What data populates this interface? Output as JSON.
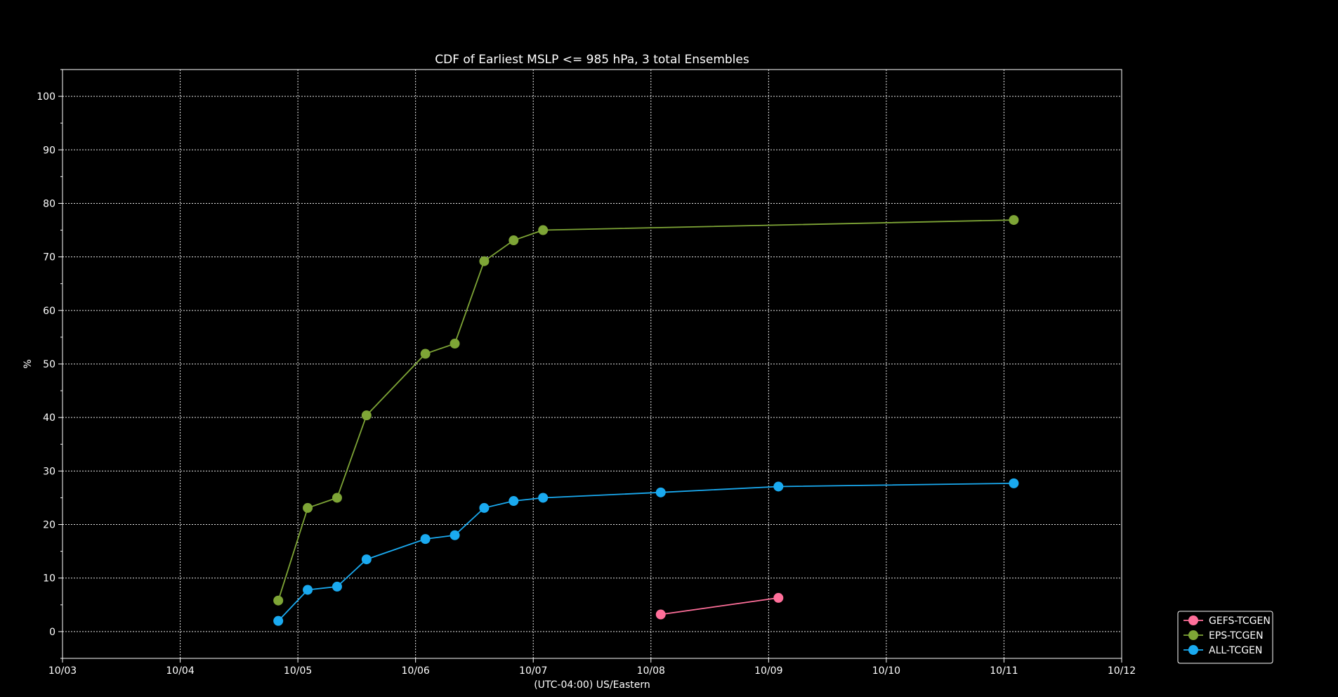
{
  "chart_data": {
    "type": "line",
    "title": "CDF of Earliest MSLP <= 985 hPa, 3 total Ensembles",
    "xlabel": "(UTC-04:00) US/Eastern",
    "ylabel": "%",
    "xlim": [
      "10/03",
      "10/12"
    ],
    "ylim": [
      -5,
      105
    ],
    "x_tick_labels": [
      "10/03",
      "10/04",
      "10/05",
      "10/06",
      "10/07",
      "10/08",
      "10/09",
      "10/10",
      "10/11",
      "10/12"
    ],
    "y_ticks": [
      0,
      10,
      20,
      30,
      40,
      50,
      60,
      70,
      80,
      90,
      100
    ],
    "grid": true,
    "legend_position": "lower-right, outside plot",
    "series": [
      {
        "name": "GEFS-TCGEN",
        "color": "#ff6f9a",
        "points": [
          {
            "x": "10/08 02:00",
            "y": 3.2
          },
          {
            "x": "10/09 02:00",
            "y": 6.3
          }
        ]
      },
      {
        "name": "EPS-TCGEN",
        "color": "#7ea536",
        "points": [
          {
            "x": "10/04 20:00",
            "y": 5.8
          },
          {
            "x": "10/05 02:00",
            "y": 23.1
          },
          {
            "x": "10/05 08:00",
            "y": 25.0
          },
          {
            "x": "10/05 14:00",
            "y": 40.4
          },
          {
            "x": "10/06 02:00",
            "y": 51.9
          },
          {
            "x": "10/06 08:00",
            "y": 53.8
          },
          {
            "x": "10/06 14:00",
            "y": 69.2
          },
          {
            "x": "10/06 20:00",
            "y": 73.1
          },
          {
            "x": "10/07 02:00",
            "y": 75.0
          },
          {
            "x": "10/11 02:00",
            "y": 76.9
          }
        ]
      },
      {
        "name": "ALL-TCGEN",
        "color": "#1aaaf0",
        "points": [
          {
            "x": "10/04 20:00",
            "y": 2.0
          },
          {
            "x": "10/05 02:00",
            "y": 7.8
          },
          {
            "x": "10/05 08:00",
            "y": 8.4
          },
          {
            "x": "10/05 14:00",
            "y": 13.5
          },
          {
            "x": "10/06 02:00",
            "y": 17.3
          },
          {
            "x": "10/06 08:00",
            "y": 18.0
          },
          {
            "x": "10/06 14:00",
            "y": 23.1
          },
          {
            "x": "10/06 20:00",
            "y": 24.4
          },
          {
            "x": "10/07 02:00",
            "y": 25.0
          },
          {
            "x": "10/08 02:00",
            "y": 26.0
          },
          {
            "x": "10/09 02:00",
            "y": 27.1
          },
          {
            "x": "10/11 02:00",
            "y": 27.7
          }
        ]
      }
    ]
  }
}
